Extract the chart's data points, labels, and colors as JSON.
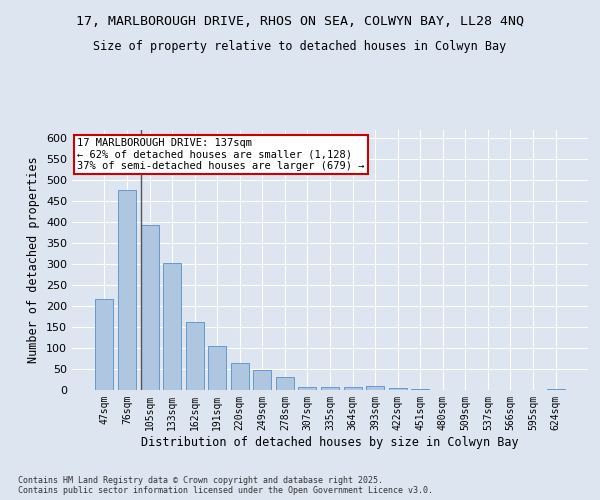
{
  "title_line1": "17, MARLBOROUGH DRIVE, RHOS ON SEA, COLWYN BAY, LL28 4NQ",
  "title_line2": "Size of property relative to detached houses in Colwyn Bay",
  "xlabel": "Distribution of detached houses by size in Colwyn Bay",
  "ylabel": "Number of detached properties",
  "categories": [
    "47sqm",
    "76sqm",
    "105sqm",
    "133sqm",
    "162sqm",
    "191sqm",
    "220sqm",
    "249sqm",
    "278sqm",
    "307sqm",
    "335sqm",
    "364sqm",
    "393sqm",
    "422sqm",
    "451sqm",
    "480sqm",
    "509sqm",
    "537sqm",
    "566sqm",
    "595sqm",
    "624sqm"
  ],
  "values": [
    218,
    478,
    394,
    304,
    163,
    105,
    65,
    47,
    30,
    7,
    6,
    6,
    9,
    5,
    2,
    1,
    1,
    0,
    0,
    0,
    2
  ],
  "bar_color": "#aec6e0",
  "bar_edge_color": "#6699cc",
  "annotation_text": "17 MARLBOROUGH DRIVE: 137sqm\n← 62% of detached houses are smaller (1,128)\n37% of semi-detached houses are larger (679) →",
  "annotation_box_color": "#ffffff",
  "annotation_border_color": "#cc0000",
  "vline_x_index": 2,
  "vline_color": "#555555",
  "bg_color": "#dde5f0",
  "grid_color": "#ffffff",
  "footer_line1": "Contains HM Land Registry data © Crown copyright and database right 2025.",
  "footer_line2": "Contains public sector information licensed under the Open Government Licence v3.0.",
  "ylim": [
    0,
    620
  ],
  "yticks": [
    0,
    50,
    100,
    150,
    200,
    250,
    300,
    350,
    400,
    450,
    500,
    550,
    600
  ]
}
